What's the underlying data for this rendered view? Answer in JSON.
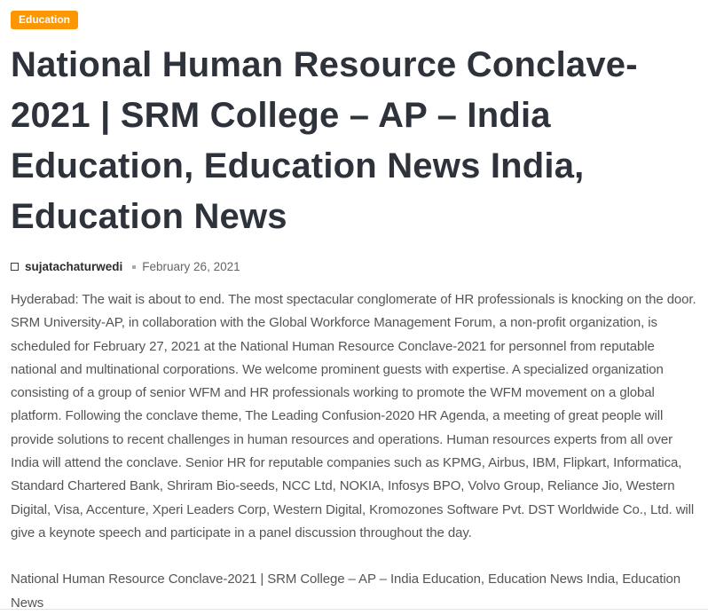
{
  "colors": {
    "badge_background": "#fb9703",
    "badge_text": "#ffffff",
    "heading_text": "#2e333b",
    "body_text": "#555555",
    "meta_date_text": "#666666"
  },
  "category_badge": {
    "label": "Education"
  },
  "article": {
    "title_lines": [
      "National Human Resource Conclave-",
      "2021 | SRM College – AP – India",
      "Education, Education News India,",
      "Education News"
    ],
    "meta": {
      "author": "sujatachaturwedi",
      "date": "February 26, 2021"
    },
    "body": "Hyderabad: The wait is about to end. The most spectacular conglomerate of HR professionals is knocking on the door. SRM University-AP, in collaboration with the Global Workforce Management Forum, a non-profit organization, is scheduled for February 27, 2021 at the National Human Resource Conclave-2021 for personnel from reputable national and multinational corporations. We welcome prominent guests with expertise. A specialized organization consisting of a group of senior WFM and HR professionals working to promote the WFM movement on a global platform. Following the conclave theme, The Leading Confusion-2020 HR Agenda, a meeting of great people will provide solutions to recent challenges in human resources and operations. Human resources experts from all over India will attend the conclave. Senior HR for reputable companies such as KPMG, Airbus, IBM, Flipkart, Informatica, Standard Chartered Bank, Shriram Bio-seeds, NCC Ltd, NOKIA, Infosys BPO, Volvo Group, Reliance Jio, Western Digital, Visa, Accenture, Xperi Leaders Corp, Western Digital, Kromozones Software Pvt. DST Worldwide Co., Ltd. will give a keynote speech and participate in a panel discussion throughout the day.",
    "footer_title": "National Human Resource Conclave-2021 | SRM College – AP – India Education, Education News India, Education News"
  }
}
